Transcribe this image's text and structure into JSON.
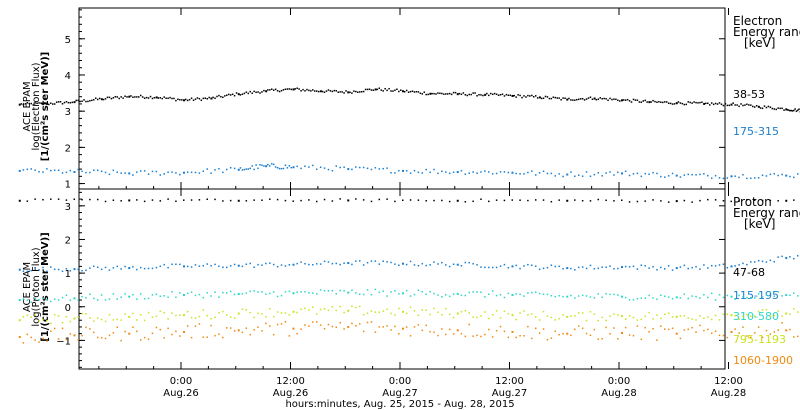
{
  "chart_data": [
    {
      "type": "scatter",
      "panel": "electron",
      "ylabel": [
        "ACE EPAM",
        "log(Electron Flux)",
        "[1/(cm²s ster MeV)]"
      ],
      "ylim": [
        0.85,
        5.85
      ],
      "yticks": [
        1,
        2,
        3,
        4,
        5
      ],
      "legend_title": [
        "Electron",
        "Energy ranges",
        "[keV]"
      ],
      "series": [
        {
          "name": "38-53",
          "color": "#000000",
          "x": [
            0,
            3,
            6,
            9,
            12,
            15,
            18,
            21,
            24,
            27,
            30,
            33,
            36,
            39,
            42,
            45,
            48,
            51,
            54,
            57,
            60,
            63,
            66,
            69,
            72,
            75,
            78,
            81,
            84,
            86,
            87,
            88,
            90,
            93,
            96,
            99,
            102,
            105,
            108,
            111,
            114,
            117,
            120,
            123,
            126,
            129,
            132
          ],
          "y": [
            3.18,
            3.2,
            3.25,
            3.33,
            3.4,
            3.38,
            3.3,
            3.35,
            3.47,
            3.55,
            3.6,
            3.55,
            3.52,
            3.6,
            3.55,
            3.48,
            3.47,
            3.45,
            3.42,
            3.38,
            3.32,
            3.35,
            3.3,
            3.25,
            3.22,
            3.2,
            3.18,
            3.12,
            3.05,
            3.0,
            3.2,
            3.6,
            3.3,
            3.32,
            3.35,
            3.43,
            3.4,
            3.38,
            3.3,
            3.15,
            3.2,
            3.18,
            3.05,
            3.0,
            3.02,
            3.0,
            3.02
          ]
        },
        {
          "name": "175-315",
          "color": "#1a7fd0",
          "x": [
            0,
            6,
            12,
            18,
            24,
            27,
            30,
            36,
            42,
            48,
            54,
            60,
            66,
            72,
            78,
            84,
            90,
            96,
            102,
            108,
            114,
            120,
            126,
            132
          ],
          "y": [
            1.35,
            1.32,
            1.28,
            1.3,
            1.38,
            1.48,
            1.45,
            1.4,
            1.35,
            1.32,
            1.3,
            1.25,
            1.28,
            1.22,
            1.2,
            1.22,
            1.25,
            1.2,
            1.22,
            1.18,
            1.22,
            1.2,
            1.15,
            1.2
          ]
        }
      ]
    },
    {
      "type": "scatter",
      "panel": "proton",
      "ylabel": [
        "ACE EPAM",
        "log(Proton Flux)",
        "[1/(cm²s ster MeV)]"
      ],
      "ylim": [
        -1.85,
        3.5
      ],
      "yticks": [
        -1,
        0,
        1,
        2,
        3
      ],
      "legend_title": [
        "Proton",
        "Energy ranges",
        "[keV]"
      ],
      "series": [
        {
          "name": "47-68",
          "color": "#000000",
          "x": [
            0,
            12,
            24,
            36,
            48,
            60,
            72,
            84,
            96,
            108,
            120,
            132
          ],
          "y": [
            3.15,
            3.16,
            3.15,
            3.16,
            3.15,
            3.15,
            3.14,
            3.15,
            3.15,
            3.14,
            3.15,
            3.15
          ]
        },
        {
          "name": "115-195",
          "color": "#1a7fd0",
          "x": [
            0,
            6,
            12,
            18,
            24,
            30,
            36,
            42,
            48,
            54,
            60,
            66,
            72,
            78,
            84,
            90,
            96,
            102,
            108,
            114,
            120,
            126,
            132
          ],
          "y": [
            1.1,
            1.12,
            1.15,
            1.2,
            1.22,
            1.25,
            1.3,
            1.28,
            1.25,
            1.2,
            1.15,
            1.18,
            1.15,
            1.2,
            1.45,
            1.5,
            1.45,
            1.4,
            1.35,
            1.3,
            1.32,
            1.28,
            1.25
          ]
        },
        {
          "name": "310-580",
          "color": "#2ad6c6",
          "x": [
            0,
            6,
            12,
            18,
            24,
            30,
            36,
            42,
            48,
            54,
            60,
            66,
            72,
            78,
            84,
            90,
            96,
            102,
            108,
            114,
            120,
            126,
            132
          ],
          "y": [
            0.2,
            0.25,
            0.3,
            0.35,
            0.38,
            0.4,
            0.42,
            0.4,
            0.38,
            0.35,
            0.3,
            0.3,
            0.28,
            0.3,
            0.35,
            0.45,
            0.5,
            0.45,
            0.42,
            0.4,
            0.38,
            0.35,
            0.32
          ]
        },
        {
          "name": "795-1193",
          "color": "#c9e31c",
          "x": [
            0,
            6,
            12,
            18,
            24,
            30,
            36,
            42,
            48,
            54,
            60,
            66,
            72,
            78,
            84,
            90,
            96,
            102,
            108,
            114,
            120,
            126,
            132
          ],
          "y": [
            -0.4,
            -0.35,
            -0.3,
            -0.25,
            -0.2,
            -0.15,
            -0.12,
            -0.15,
            -0.2,
            -0.25,
            -0.3,
            -0.28,
            -0.3,
            -0.25,
            -0.2,
            -0.15,
            -0.12,
            -0.15,
            -0.2,
            -0.25,
            -0.28,
            -0.3,
            -0.3
          ]
        },
        {
          "name": "1060-1900",
          "color": "#ef8a10",
          "x": [
            0,
            6,
            12,
            18,
            24,
            30,
            36,
            42,
            48,
            54,
            60,
            66,
            72,
            78,
            84,
            90,
            96,
            102,
            108,
            114,
            120,
            126,
            132
          ],
          "y": [
            -0.9,
            -0.85,
            -0.8,
            -0.75,
            -0.7,
            -0.65,
            -0.6,
            -0.65,
            -0.7,
            -0.75,
            -0.8,
            -0.78,
            -0.8,
            -0.75,
            -0.7,
            -0.65,
            -0.6,
            -0.65,
            -0.7,
            -0.75,
            -0.8,
            -0.85,
            -0.8
          ]
        }
      ]
    }
  ],
  "x_axis": {
    "range_hours": [
      -18,
      138
    ],
    "ticks": [
      {
        "x": 0,
        "time": "0:00",
        "date": "Aug.26"
      },
      {
        "x": 12,
        "time": "12:00",
        "date": "Aug.26"
      },
      {
        "x": 24,
        "time": "0:00",
        "date": "Aug.27"
      },
      {
        "x": 36,
        "time": "12:00",
        "date": "Aug.27"
      },
      {
        "x": 48,
        "time": "0:00",
        "date": "Aug.28"
      },
      {
        "x": 60,
        "time": "12:00",
        "date": "Aug.28"
      }
    ],
    "label": "hours:minutes, Aug. 25, 2015 - Aug. 28, 2015"
  }
}
